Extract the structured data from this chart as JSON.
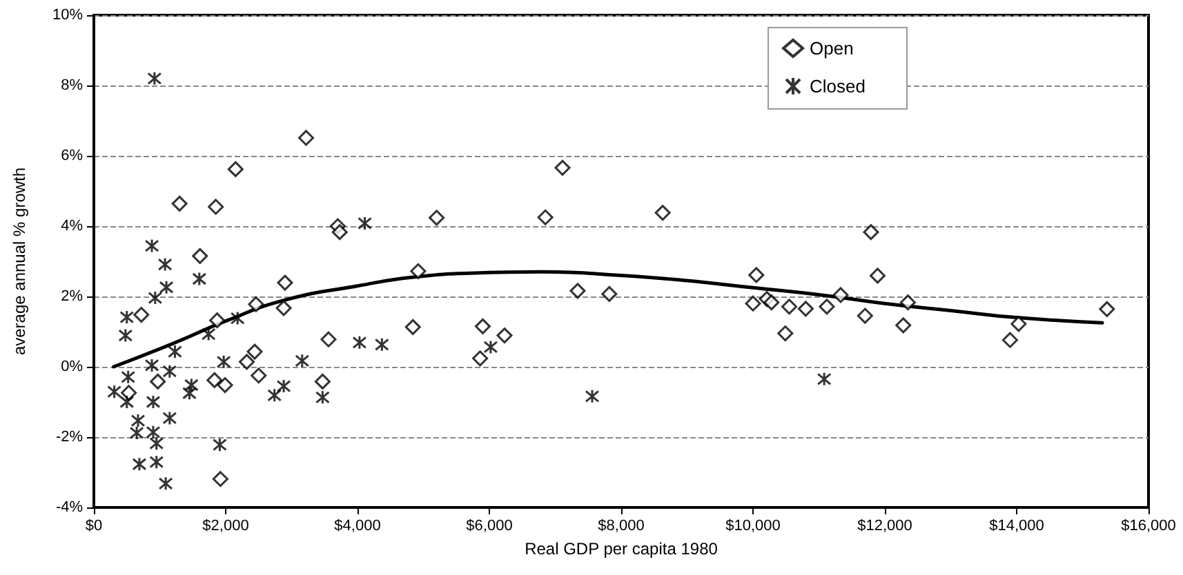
{
  "chart_data": {
    "type": "scatter",
    "xlabel": "Real GDP per capita 1980",
    "ylabel": "average annual % growth",
    "xlim": [
      0,
      16000
    ],
    "ylim": [
      -4,
      10
    ],
    "xticks": [
      {
        "value": 0,
        "label": "$0"
      },
      {
        "value": 2000,
        "label": "$2,000"
      },
      {
        "value": 4000,
        "label": "$4,000"
      },
      {
        "value": 6000,
        "label": "$6,000"
      },
      {
        "value": 8000,
        "label": "$8,000"
      },
      {
        "value": 10000,
        "label": "$10,000"
      },
      {
        "value": 12000,
        "label": "$12,000"
      },
      {
        "value": 14000,
        "label": "$14,000"
      },
      {
        "value": 16000,
        "label": "$16,000"
      }
    ],
    "yticks": [
      {
        "value": -4,
        "label": "-4%"
      },
      {
        "value": -2,
        "label": "-2%"
      },
      {
        "value": 0,
        "label": "0%"
      },
      {
        "value": 2,
        "label": "2%"
      },
      {
        "value": 4,
        "label": "4%"
      },
      {
        "value": 6,
        "label": "6%"
      },
      {
        "value": 8,
        "label": "8%"
      },
      {
        "value": 10,
        "label": "10%"
      }
    ],
    "grid": "y",
    "legend": "top right",
    "series": [
      {
        "name": "Open",
        "color": "#000000",
        "marker": "diamond",
        "x": [
          2150,
          1300,
          1850,
          1610,
          2900,
          720,
          2460,
          1870,
          2880,
          2440,
          2320,
          2500,
          970,
          530,
          1830,
          1990,
          1920,
          3220,
          3700,
          3730,
          5200,
          4920,
          3560,
          4840,
          3470,
          5900,
          6230,
          5860,
          6850,
          7110,
          8630,
          7340,
          7820,
          10050,
          10000,
          10210,
          10280,
          10550,
          10490,
          10800,
          11120,
          11330,
          11700,
          11790,
          11890,
          12350,
          12280,
          14030,
          13900,
          15370
        ],
        "values": [
          5.62,
          4.64,
          4.55,
          3.15,
          2.39,
          1.48,
          1.78,
          1.32,
          1.67,
          0.43,
          0.14,
          -0.25,
          -0.42,
          -0.74,
          -0.38,
          -0.52,
          -3.19,
          6.51,
          4.0,
          3.83,
          4.24,
          2.72,
          0.78,
          1.13,
          -0.42,
          1.15,
          0.89,
          0.24,
          4.25,
          5.66,
          4.38,
          2.16,
          2.07,
          2.61,
          1.8,
          1.93,
          1.83,
          1.71,
          0.95,
          1.65,
          1.71,
          2.04,
          1.45,
          3.83,
          2.59,
          1.83,
          1.18,
          1.22,
          0.76,
          1.64
        ]
      },
      {
        "name": "Closed",
        "color": "#000000",
        "marker": "cross",
        "x": [
          920,
          880,
          1080,
          1100,
          930,
          1600,
          500,
          480,
          1230,
          880,
          520,
          310,
          500,
          900,
          1150,
          1480,
          1450,
          670,
          1150,
          650,
          900,
          950,
          690,
          950,
          1090,
          1910,
          1740,
          2180,
          1970,
          2740,
          2880,
          3470,
          3160,
          4030,
          4370,
          4110,
          6020,
          7560,
          11080
        ],
        "values": [
          8.2,
          3.44,
          2.91,
          2.26,
          1.96,
          2.5,
          1.41,
          0.89,
          0.43,
          0.04,
          -0.29,
          -0.71,
          -1.0,
          -1.0,
          -0.13,
          -0.52,
          -0.75,
          -1.53,
          -1.46,
          -1.88,
          -1.86,
          -2.18,
          -2.77,
          -2.71,
          -3.32,
          -2.22,
          0.93,
          1.38,
          0.14,
          -0.81,
          -0.55,
          -0.87,
          0.17,
          0.69,
          0.63,
          4.08,
          0.56,
          -0.84,
          -0.35
        ]
      },
      {
        "type": "line",
        "color": "#000000",
        "marker": "none",
        "line_style": "solid",
        "x": [
          300,
          1250,
          2000,
          2900,
          4000,
          4850,
          6000,
          6800,
          8000,
          9000,
          10000,
          11000,
          12000,
          13000,
          14000,
          15300
        ],
        "values": [
          0.0,
          0.7,
          1.3,
          1.9,
          2.3,
          2.55,
          2.68,
          2.7,
          2.6,
          2.45,
          2.25,
          2.05,
          1.8,
          1.6,
          1.4,
          1.25
        ]
      }
    ]
  }
}
